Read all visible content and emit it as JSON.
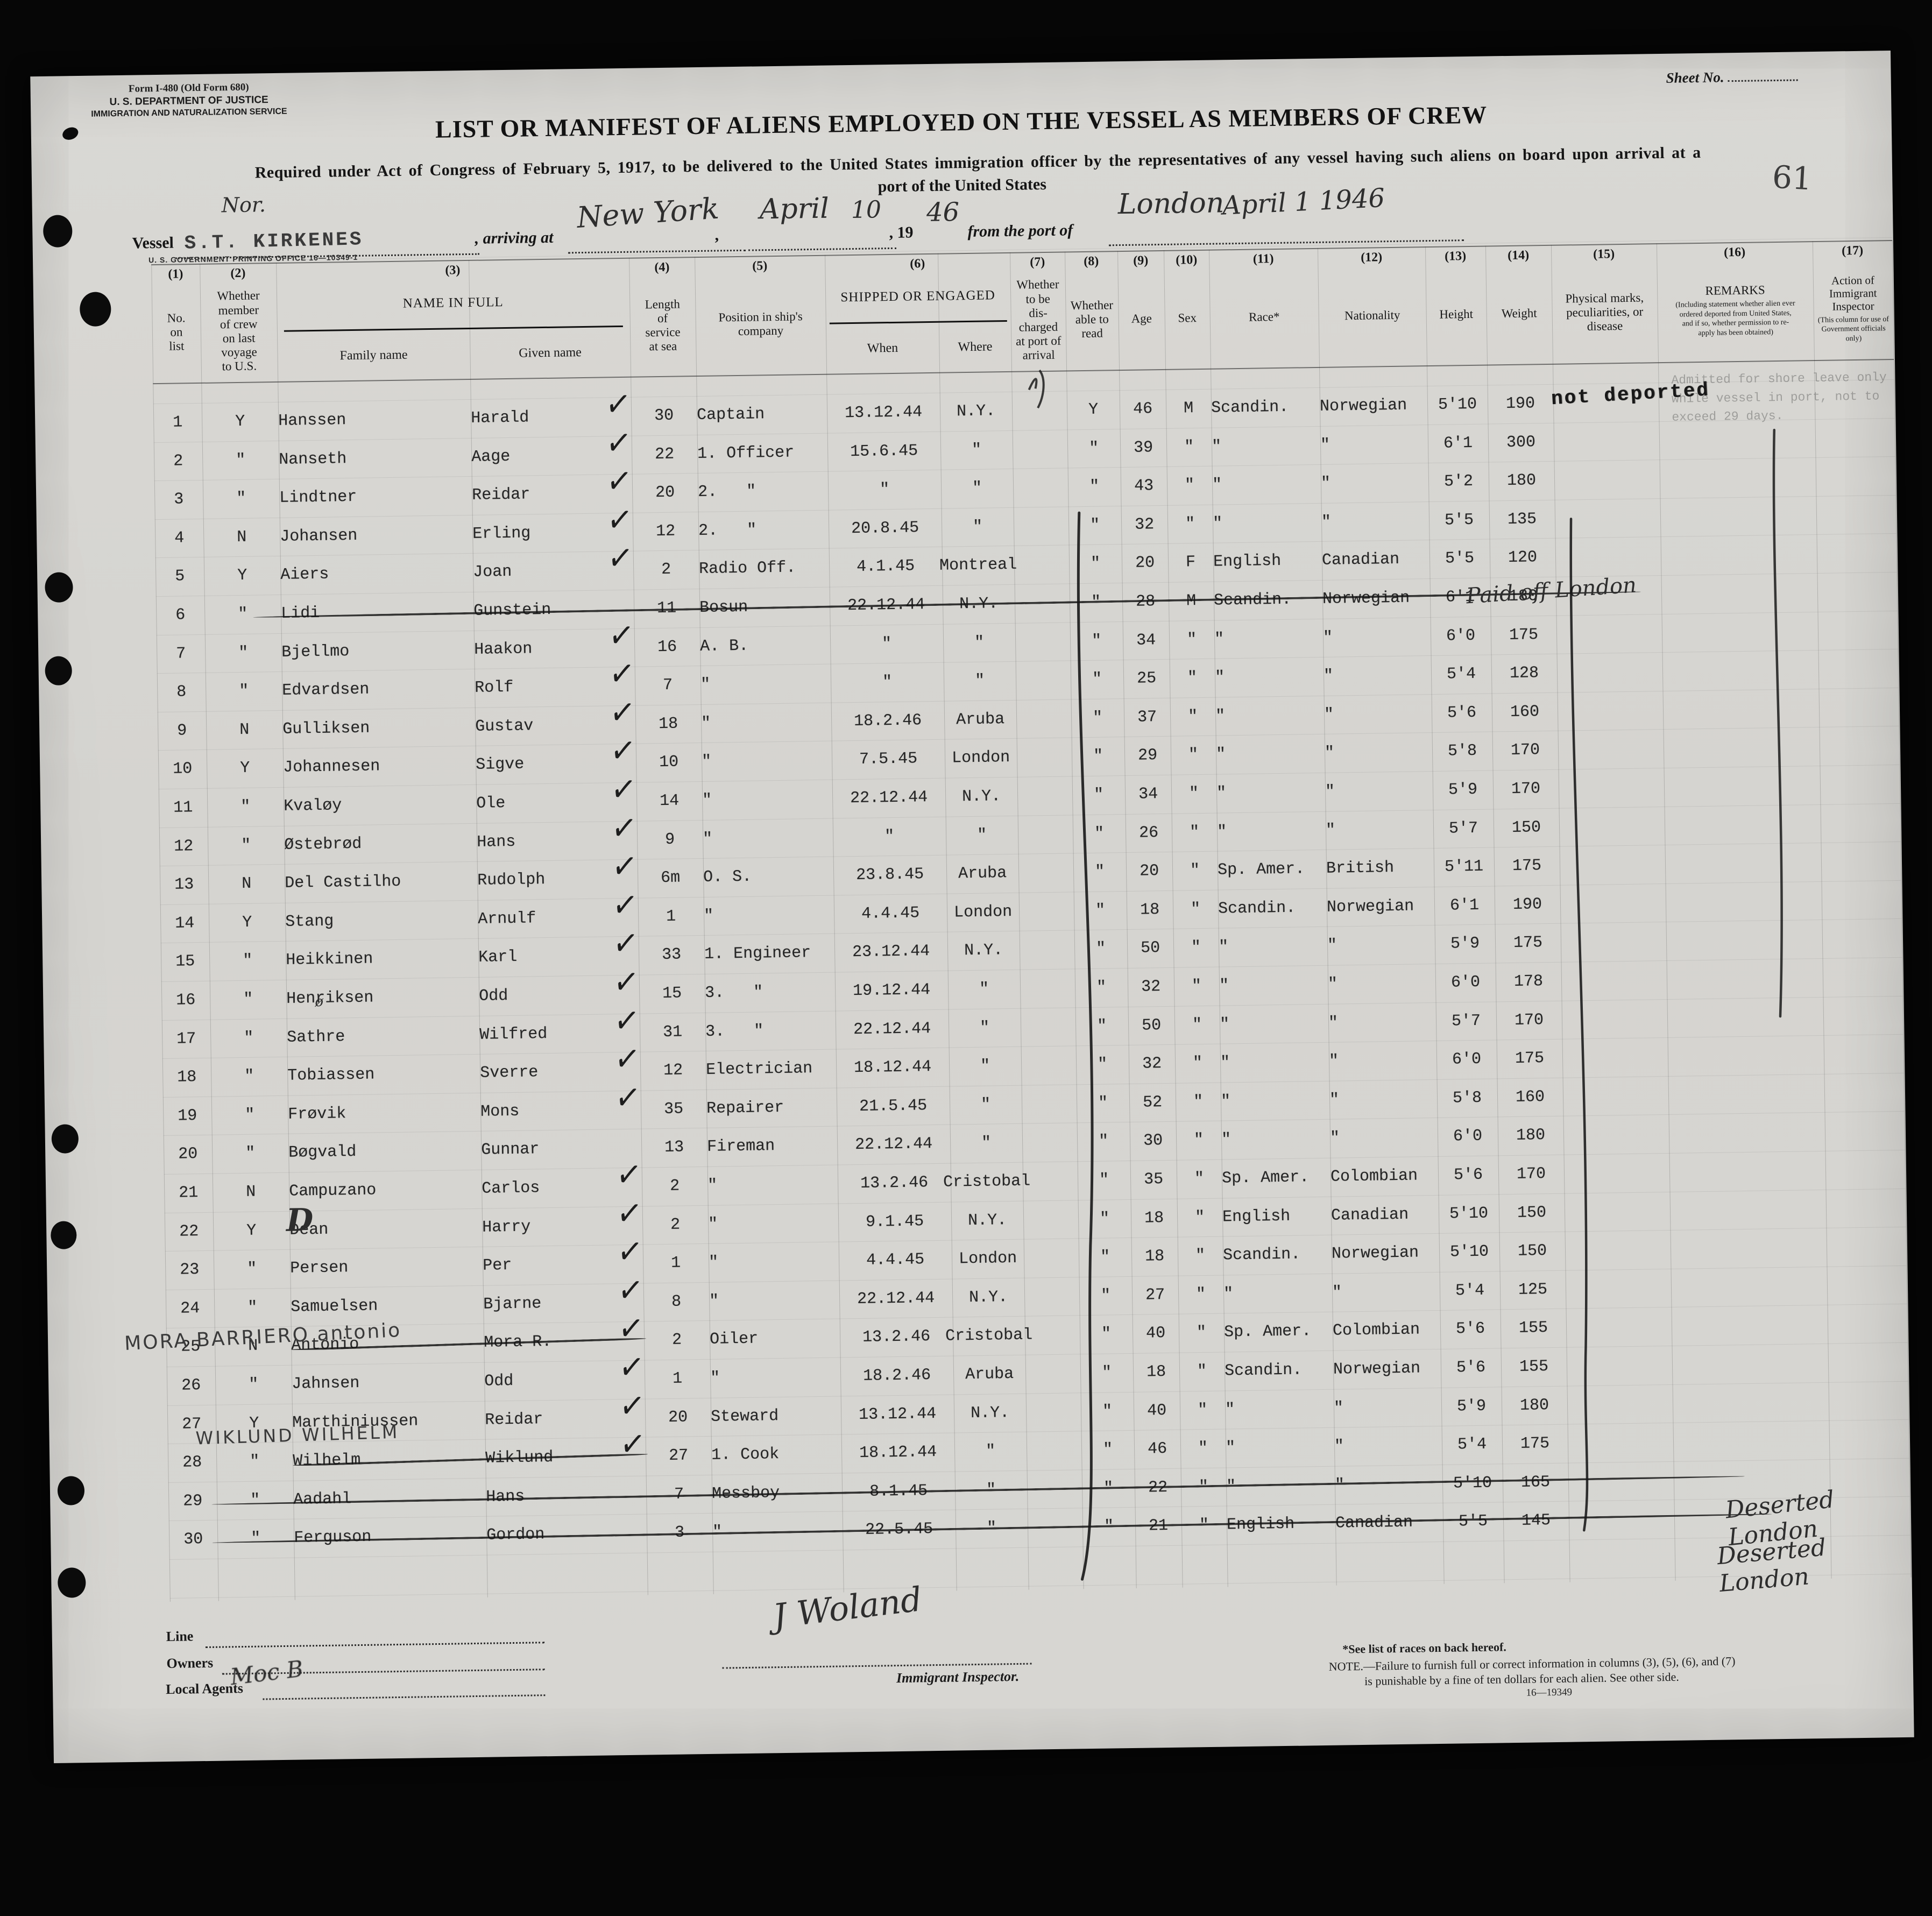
{
  "form": {
    "form_number": "Form I-480 (Old Form 680)",
    "dept": "U. S. DEPARTMENT OF JUSTICE",
    "service": "IMMIGRATION AND NATURALIZATION SERVICE",
    "sheet_label": "Sheet No.",
    "sheet_value": "1",
    "title": "LIST OR MANIFEST OF ALIENS EMPLOYED ON THE VESSEL AS MEMBERS OF CREW",
    "subtitle1": "Required under Act of Congress of February 5, 1917, to be delivered to the United States immigration officer by the representatives of any vessel having such aliens on board upon arrival at a",
    "subtitle2": "port of the United States",
    "pencil_number": "61",
    "gpo": "U. S. GOVERNMENT PRINTING OFFICE   16—10349-1",
    "vessel_label": "Vessel",
    "vessel_nationality": "Nor.",
    "vessel_name": "S.T. KIRKENES",
    "arriving_label": ", arriving at",
    "arriving_port": "New York",
    "comma": ",",
    "arrival_month": "April",
    "arrival_day": "10",
    "year_printed": ", 19",
    "year_written": "46",
    "from_label": "from the port of",
    "from_port": "London",
    "from_date": "April 1 1946"
  },
  "table": {
    "checkmark_glyph": "✓",
    "columns": [
      {
        "num": "(1)",
        "label": "No.\non\nlist"
      },
      {
        "num": "(2)",
        "label": "Whether\nmember\nof crew\non last\nvoyage\nto U.S."
      },
      {
        "num": "(3)",
        "label": "NAME IN FULL",
        "subcols": [
          "Family name",
          "Given name"
        ]
      },
      {
        "num": "(4)",
        "label": "Length\nof\nservice\nat sea"
      },
      {
        "num": "(5)",
        "label": "Position in ship's\ncompany"
      },
      {
        "num": "(6)",
        "label": "SHIPPED OR ENGAGED",
        "subcols": [
          "When",
          "Where"
        ]
      },
      {
        "num": "(7)",
        "label": "Whether\nto be\ndis-\ncharged\nat port of\narrival"
      },
      {
        "num": "(8)",
        "label": "Whether\nable to\nread"
      },
      {
        "num": "(9)",
        "label": "Age"
      },
      {
        "num": "(10)",
        "label": "Sex"
      },
      {
        "num": "(11)",
        "label": "Race*"
      },
      {
        "num": "(12)",
        "label": "Nationality"
      },
      {
        "num": "(13)",
        "label": "Height"
      },
      {
        "num": "(14)",
        "label": "Weight"
      },
      {
        "num": "(15)",
        "label": "Physical marks,\npeculiarities, or\ndisease"
      },
      {
        "num": "(16)",
        "label": "REMARKS",
        "sub": "(Including statement whether alien ever\nordered deported from United States,\nand if so, whether permission to re-\napply has been obtained)"
      },
      {
        "num": "(17)",
        "label": "Action of Immigrant\nInspector",
        "sub": "(This column for use of\nGovernment officials only)"
      }
    ],
    "crew": [
      {
        "no": "1",
        "mem": "Y",
        "family": "Hanssen",
        "given": "Harald",
        "chk": true,
        "svc": "30",
        "pos": "Captain",
        "when": "13.12.44",
        "where": "N.Y.",
        "read": "Y",
        "age": "46",
        "sex": "M",
        "race": "Scandin.",
        "nat": "Norwegian",
        "ht": "5'10",
        "wt": "190"
      },
      {
        "no": "2",
        "mem": "\"",
        "family": "Nanseth",
        "given": "Aage",
        "chk": true,
        "svc": "22",
        "pos": "1. Officer",
        "when": "15.6.45",
        "where": "\"",
        "read": "\"",
        "age": "39",
        "sex": "\"",
        "race": "\"",
        "nat": "\"",
        "ht": "6'1",
        "wt": "300"
      },
      {
        "no": "3",
        "mem": "\"",
        "family": "Lindtner",
        "given": "Reidar",
        "chk": true,
        "svc": "20",
        "pos": "2.   \"",
        "when": "\"",
        "where": "\"",
        "read": "\"",
        "age": "43",
        "sex": "\"",
        "race": "\"",
        "nat": "\"",
        "ht": "5'2",
        "wt": "180"
      },
      {
        "no": "4",
        "mem": "N",
        "family": "Johansen",
        "given": "Erling",
        "chk": true,
        "svc": "12",
        "pos": "2.   \"",
        "when": "20.8.45",
        "where": "\"",
        "read": "\"",
        "age": "32",
        "sex": "\"",
        "race": "\"",
        "nat": "\"",
        "ht": "5'5",
        "wt": "135"
      },
      {
        "no": "5",
        "mem": "Y",
        "family": "Aiers",
        "given": "Joan",
        "chk": true,
        "svc": "2",
        "pos": "Radio Off.",
        "when": "4.1.45",
        "where": "Montreal",
        "read": "\"",
        "age": "20",
        "sex": "F",
        "race": "English",
        "nat": "Canadian",
        "ht": "5'5",
        "wt": "120"
      },
      {
        "no": "6",
        "mem": "\"",
        "family": "Lidi",
        "given": "Gunstein",
        "chk": false,
        "svc": "11",
        "pos": "Bosun",
        "when": "22.12.44",
        "where": "N.Y.",
        "read": "\"",
        "age": "28",
        "sex": "M",
        "race": "Scandin.",
        "nat": "Norwegian",
        "ht": "6'1",
        "wt": "180",
        "strike": "row"
      },
      {
        "no": "7",
        "mem": "\"",
        "family": "Bjellmo",
        "given": "Haakon",
        "chk": true,
        "svc": "16",
        "pos": "A. B.",
        "when": "\"",
        "where": "\"",
        "read": "\"",
        "age": "34",
        "sex": "\"",
        "race": "\"",
        "nat": "\"",
        "ht": "6'0",
        "wt": "175"
      },
      {
        "no": "8",
        "mem": "\"",
        "family": "Edvardsen",
        "given": "Rolf",
        "chk": true,
        "svc": "7",
        "pos": "\"",
        "when": "\"",
        "where": "\"",
        "read": "\"",
        "age": "25",
        "sex": "\"",
        "race": "\"",
        "nat": "\"",
        "ht": "5'4",
        "wt": "128"
      },
      {
        "no": "9",
        "mem": "N",
        "family": "Gulliksen",
        "given": "Gustav",
        "chk": true,
        "svc": "18",
        "pos": "\"",
        "when": "18.2.46",
        "where": "Aruba",
        "read": "\"",
        "age": "37",
        "sex": "\"",
        "race": "\"",
        "nat": "\"",
        "ht": "5'6",
        "wt": "160"
      },
      {
        "no": "10",
        "mem": "Y",
        "family": "Johannesen",
        "given": "Sigve",
        "chk": true,
        "svc": "10",
        "pos": "\"",
        "when": "7.5.45",
        "where": "London",
        "read": "\"",
        "age": "29",
        "sex": "\"",
        "race": "\"",
        "nat": "\"",
        "ht": "5'8",
        "wt": "170"
      },
      {
        "no": "11",
        "mem": "\"",
        "family": "Kvaløy",
        "given": "Ole",
        "chk": true,
        "svc": "14",
        "pos": "\"",
        "when": "22.12.44",
        "where": "N.Y.",
        "read": "\"",
        "age": "34",
        "sex": "\"",
        "race": "\"",
        "nat": "\"",
        "ht": "5'9",
        "wt": "170"
      },
      {
        "no": "12",
        "mem": "\"",
        "family": "Østebrød",
        "given": "Hans",
        "chk": true,
        "svc": "9",
        "pos": "\"",
        "when": "\"",
        "where": "\"",
        "read": "\"",
        "age": "26",
        "sex": "\"",
        "race": "\"",
        "nat": "\"",
        "ht": "5'7",
        "wt": "150"
      },
      {
        "no": "13",
        "mem": "N",
        "family": "Del Castilho",
        "given": "Rudolph",
        "chk": true,
        "svc": "6m",
        "pos": "O. S.",
        "when": "23.8.45",
        "where": "Aruba",
        "read": "\"",
        "age": "20",
        "sex": "\"",
        "race": "Sp. Amer.",
        "nat": "British",
        "ht": "5'11",
        "wt": "175"
      },
      {
        "no": "14",
        "mem": "Y",
        "family": "Stang",
        "given": "Arnulf",
        "chk": true,
        "svc": "1",
        "pos": "\"",
        "when": "4.4.45",
        "where": "London",
        "read": "\"",
        "age": "18",
        "sex": "\"",
        "race": "Scandin.",
        "nat": "Norwegian",
        "ht": "6'1",
        "wt": "190"
      },
      {
        "no": "15",
        "mem": "\"",
        "family": "Heikkinen",
        "given": "Karl",
        "chk": true,
        "svc": "33",
        "pos": "1. Engineer",
        "when": "23.12.44",
        "where": "N.Y.",
        "read": "\"",
        "age": "50",
        "sex": "\"",
        "race": "\"",
        "nat": "\"",
        "ht": "5'9",
        "wt": "175"
      },
      {
        "no": "16",
        "mem": "\"",
        "family": "Henriksen",
        "given": "Odd",
        "chk": true,
        "svc": "15",
        "pos": "3.   \"",
        "when": "19.12.44",
        "where": "\"",
        "read": "\"",
        "age": "32",
        "sex": "\"",
        "race": "\"",
        "nat": "\"",
        "ht": "6'0",
        "wt": "178"
      },
      {
        "no": "17",
        "mem": "\"",
        "family": "Sathre",
        "given": "Wilfred",
        "chk": true,
        "svc": "31",
        "pos": "3.   \"",
        "when": "22.12.44",
        "where": "\"",
        "read": "\"",
        "age": "50",
        "sex": "\"",
        "race": "\"",
        "nat": "\"",
        "ht": "5'7",
        "wt": "170"
      },
      {
        "no": "18",
        "mem": "\"",
        "family": "Tobiassen",
        "given": "Sverre",
        "chk": true,
        "svc": "12",
        "pos": "Electrician",
        "when": "18.12.44",
        "where": "\"",
        "read": "\"",
        "age": "32",
        "sex": "\"",
        "race": "\"",
        "nat": "\"",
        "ht": "6'0",
        "wt": "175"
      },
      {
        "no": "19",
        "mem": "\"",
        "family": "Frøvik",
        "given": "Mons",
        "chk": true,
        "svc": "35",
        "pos": "Repairer",
        "when": "21.5.45",
        "where": "\"",
        "read": "\"",
        "age": "52",
        "sex": "\"",
        "race": "\"",
        "nat": "\"",
        "ht": "5'8",
        "wt": "160"
      },
      {
        "no": "20",
        "mem": "\"",
        "family": "Bøgvald",
        "given": "Gunnar",
        "chk": false,
        "svc": "13",
        "pos": "Fireman",
        "when": "22.12.44",
        "where": "\"",
        "read": "\"",
        "age": "30",
        "sex": "\"",
        "race": "\"",
        "nat": "\"",
        "ht": "6'0",
        "wt": "180"
      },
      {
        "no": "21",
        "mem": "N",
        "family": "Campuzano",
        "given": "Carlos",
        "chk": true,
        "svc": "2",
        "pos": "\"",
        "when": "13.2.46",
        "where": "Cristobal",
        "read": "\"",
        "age": "35",
        "sex": "\"",
        "race": "Sp. Amer.",
        "nat": "Colombian",
        "ht": "5'6",
        "wt": "170"
      },
      {
        "no": "22",
        "mem": "Y",
        "family": "Dean",
        "given": "Harry",
        "chk": true,
        "svc": "2",
        "pos": "\"",
        "when": "9.1.45",
        "where": "N.Y.",
        "read": "\"",
        "age": "18",
        "sex": "\"",
        "race": "English",
        "nat": "Canadian",
        "ht": "5'10",
        "wt": "150"
      },
      {
        "no": "23",
        "mem": "\"",
        "family": "Persen",
        "given": "Per",
        "chk": true,
        "svc": "1",
        "pos": "\"",
        "when": "4.4.45",
        "where": "London",
        "read": "\"",
        "age": "18",
        "sex": "\"",
        "race": "Scandin.",
        "nat": "Norwegian",
        "ht": "5'10",
        "wt": "150"
      },
      {
        "no": "24",
        "mem": "\"",
        "family": "Samuelsen",
        "given": "Bjarne",
        "chk": true,
        "svc": "8",
        "pos": "\"",
        "when": "22.12.44",
        "where": "N.Y.",
        "read": "\"",
        "age": "27",
        "sex": "\"",
        "race": "\"",
        "nat": "\"",
        "ht": "5'4",
        "wt": "125"
      },
      {
        "no": "25",
        "mem": "N",
        "family": "Antonio",
        "given": "Mora R.",
        "chk": true,
        "svc": "2",
        "pos": "Oiler",
        "when": "13.2.46",
        "where": "Cristobal",
        "read": "\"",
        "age": "40",
        "sex": "\"",
        "race": "Sp. Amer.",
        "nat": "Colombian",
        "ht": "5'6",
        "wt": "155",
        "strike": "name"
      },
      {
        "no": "26",
        "mem": "\"",
        "family": "Jahnsen",
        "given": "Odd",
        "chk": true,
        "svc": "1",
        "pos": "\"",
        "when": "18.2.46",
        "where": "Aruba",
        "read": "\"",
        "age": "18",
        "sex": "\"",
        "race": "Scandin.",
        "nat": "Norwegian",
        "ht": "5'6",
        "wt": "155"
      },
      {
        "no": "27",
        "mem": "Y",
        "family": "Marthiniussen",
        "given": "Reidar",
        "chk": true,
        "svc": "20",
        "pos": "Steward",
        "when": "13.12.44",
        "where": "N.Y.",
        "read": "\"",
        "age": "40",
        "sex": "\"",
        "race": "\"",
        "nat": "\"",
        "ht": "5'9",
        "wt": "180"
      },
      {
        "no": "28",
        "mem": "\"",
        "family": "Wilhelm",
        "given": "Wiklund",
        "chk": true,
        "svc": "27",
        "pos": "1. Cook",
        "when": "18.12.44",
        "where": "\"",
        "read": "\"",
        "age": "46",
        "sex": "\"",
        "race": "\"",
        "nat": "\"",
        "ht": "5'4",
        "wt": "175",
        "strike": "name"
      },
      {
        "no": "29",
        "mem": "\"",
        "family": "Aadahl",
        "given": "Hans",
        "chk": false,
        "svc": "7",
        "pos": "Messboy",
        "when": "8.1.45",
        "where": "\"",
        "read": "\"",
        "age": "22",
        "sex": "\"",
        "race": "\"",
        "nat": "\"",
        "ht": "5'10",
        "wt": "165",
        "strike": "row"
      },
      {
        "no": "30",
        "mem": "\"",
        "family": "Ferguson",
        "given": "Gordon",
        "chk": false,
        "svc": "3",
        "pos": "\"",
        "when": "22.5.45",
        "where": "\"",
        "read": "\"",
        "age": "21",
        "sex": "\"",
        "race": "English",
        "nat": "Canadian",
        "ht": "5'5",
        "wt": "145",
        "strike": "row"
      }
    ]
  },
  "annotations": {
    "not_deported_stamp": "not deported",
    "shore_leave_note": "Admitted for shore leave only\nwhile vessel in port, not to\nexceed 29 days.",
    "row6_note": "Paid off London",
    "row17_correction": "ø",
    "row22_correction": "D",
    "row25_correction": "MORA BARRIERO antonio",
    "row28_correction": "WIKLUND  WILHELM",
    "row29_note": "Deserted London",
    "row30_note": "Deserted London"
  },
  "footer": {
    "line_label": "Line",
    "owners_label": "Owners",
    "local_agents_label": "Local Agents",
    "local_agents_value": "Moc B",
    "inspector_signature": "J Woland",
    "inspector_label": "Immigrant Inspector.",
    "races_note": "*See list of races on back hereof.",
    "note_line1": "NOTE.—Failure to furnish full or correct information in columns (3), (5), (6), and (7)",
    "note_line2": "is punishable by a fine of ten dollars for each alien.   See other side.",
    "code": "16—19349"
  }
}
